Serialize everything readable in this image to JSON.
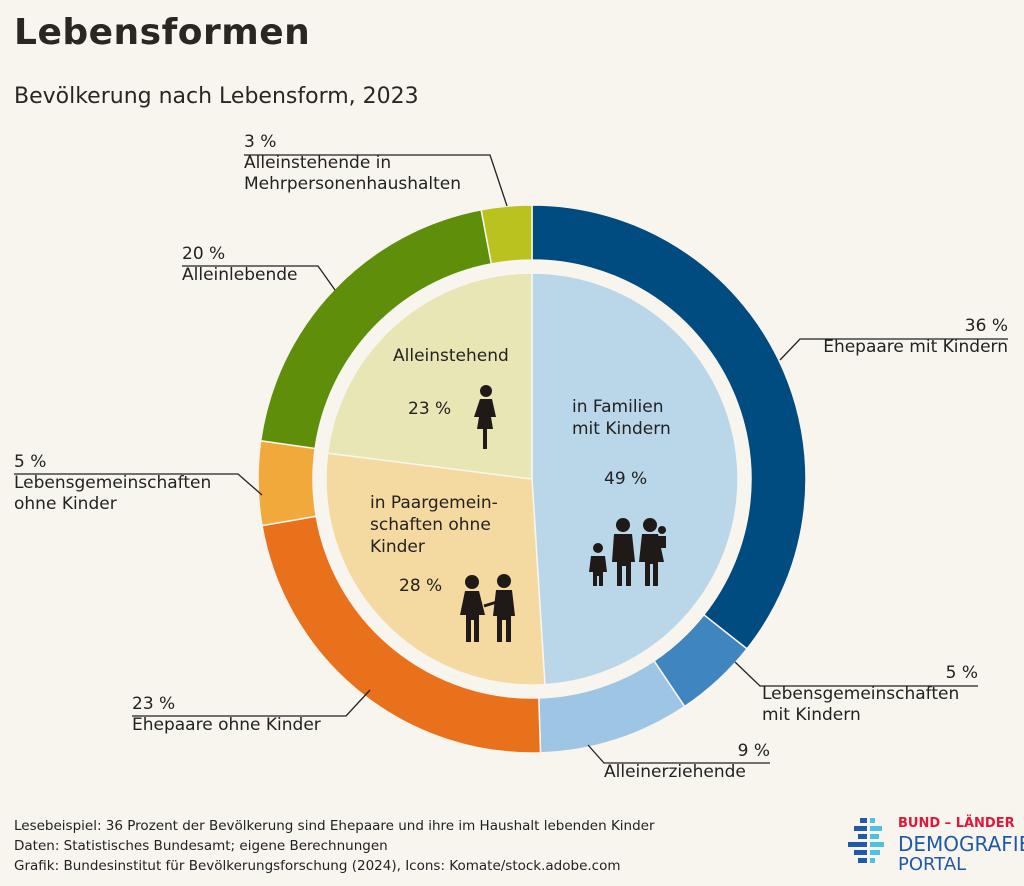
{
  "title": "Lebensformen",
  "subtitle": "Bevölkerung nach Lebensform, 2023",
  "chart_data": [
    {
      "type": "pie",
      "ring": "outer",
      "order": "clockwise from top",
      "categories": [
        "Ehepaare mit Kindern",
        "Lebensgemeinschaften mit Kindern",
        "Alleinerziehende",
        "Ehepaare ohne Kinder",
        "Lebensgemeinschaften ohne Kinder",
        "Alleinlebende",
        "Alleinstehende in Mehrpersonenhaushalten"
      ],
      "values": [
        36,
        5,
        9,
        23,
        5,
        20,
        3
      ],
      "labels": [
        "36 %",
        "5 %",
        "9 %",
        "23 %",
        "5 %",
        "20 %",
        "3 %"
      ],
      "colors": [
        "#004b7f",
        "#3f85c0",
        "#9ec6e4",
        "#ea711c",
        "#f0a93a",
        "#5f8f0a",
        "#b9c21f"
      ]
    },
    {
      "type": "pie",
      "ring": "inner",
      "order": "clockwise from top",
      "categories": [
        "in Familien mit Kindern",
        "in Paargemein-schaften ohne Kinder",
        "Alleinstehend"
      ],
      "values": [
        49,
        28,
        23
      ],
      "labels": [
        "49 %",
        "28 %",
        "23 %"
      ],
      "colors": [
        "#b9d7e9",
        "#f4d9a0",
        "#e7e6b4"
      ],
      "icons": [
        "family-icon",
        "couple-icon",
        "woman-icon"
      ]
    }
  ],
  "footer": {
    "example": "Lesebeispiel: 36 Prozent der Bevölkerung sind Ehepaare und ihre im Haushalt lebenden Kinder",
    "data": "Daten: Statistisches Bundesamt; eigene Berechnungen",
    "graphic": "Grafik: Bundesinstitut für Bevölkerungsforschung (2024), Icons: Komate/stock.adobe.com"
  },
  "logo": {
    "line1": "BUND – LÄNDER",
    "line2": "DEMOGRAFIE",
    "line3": "PORTAL"
  }
}
